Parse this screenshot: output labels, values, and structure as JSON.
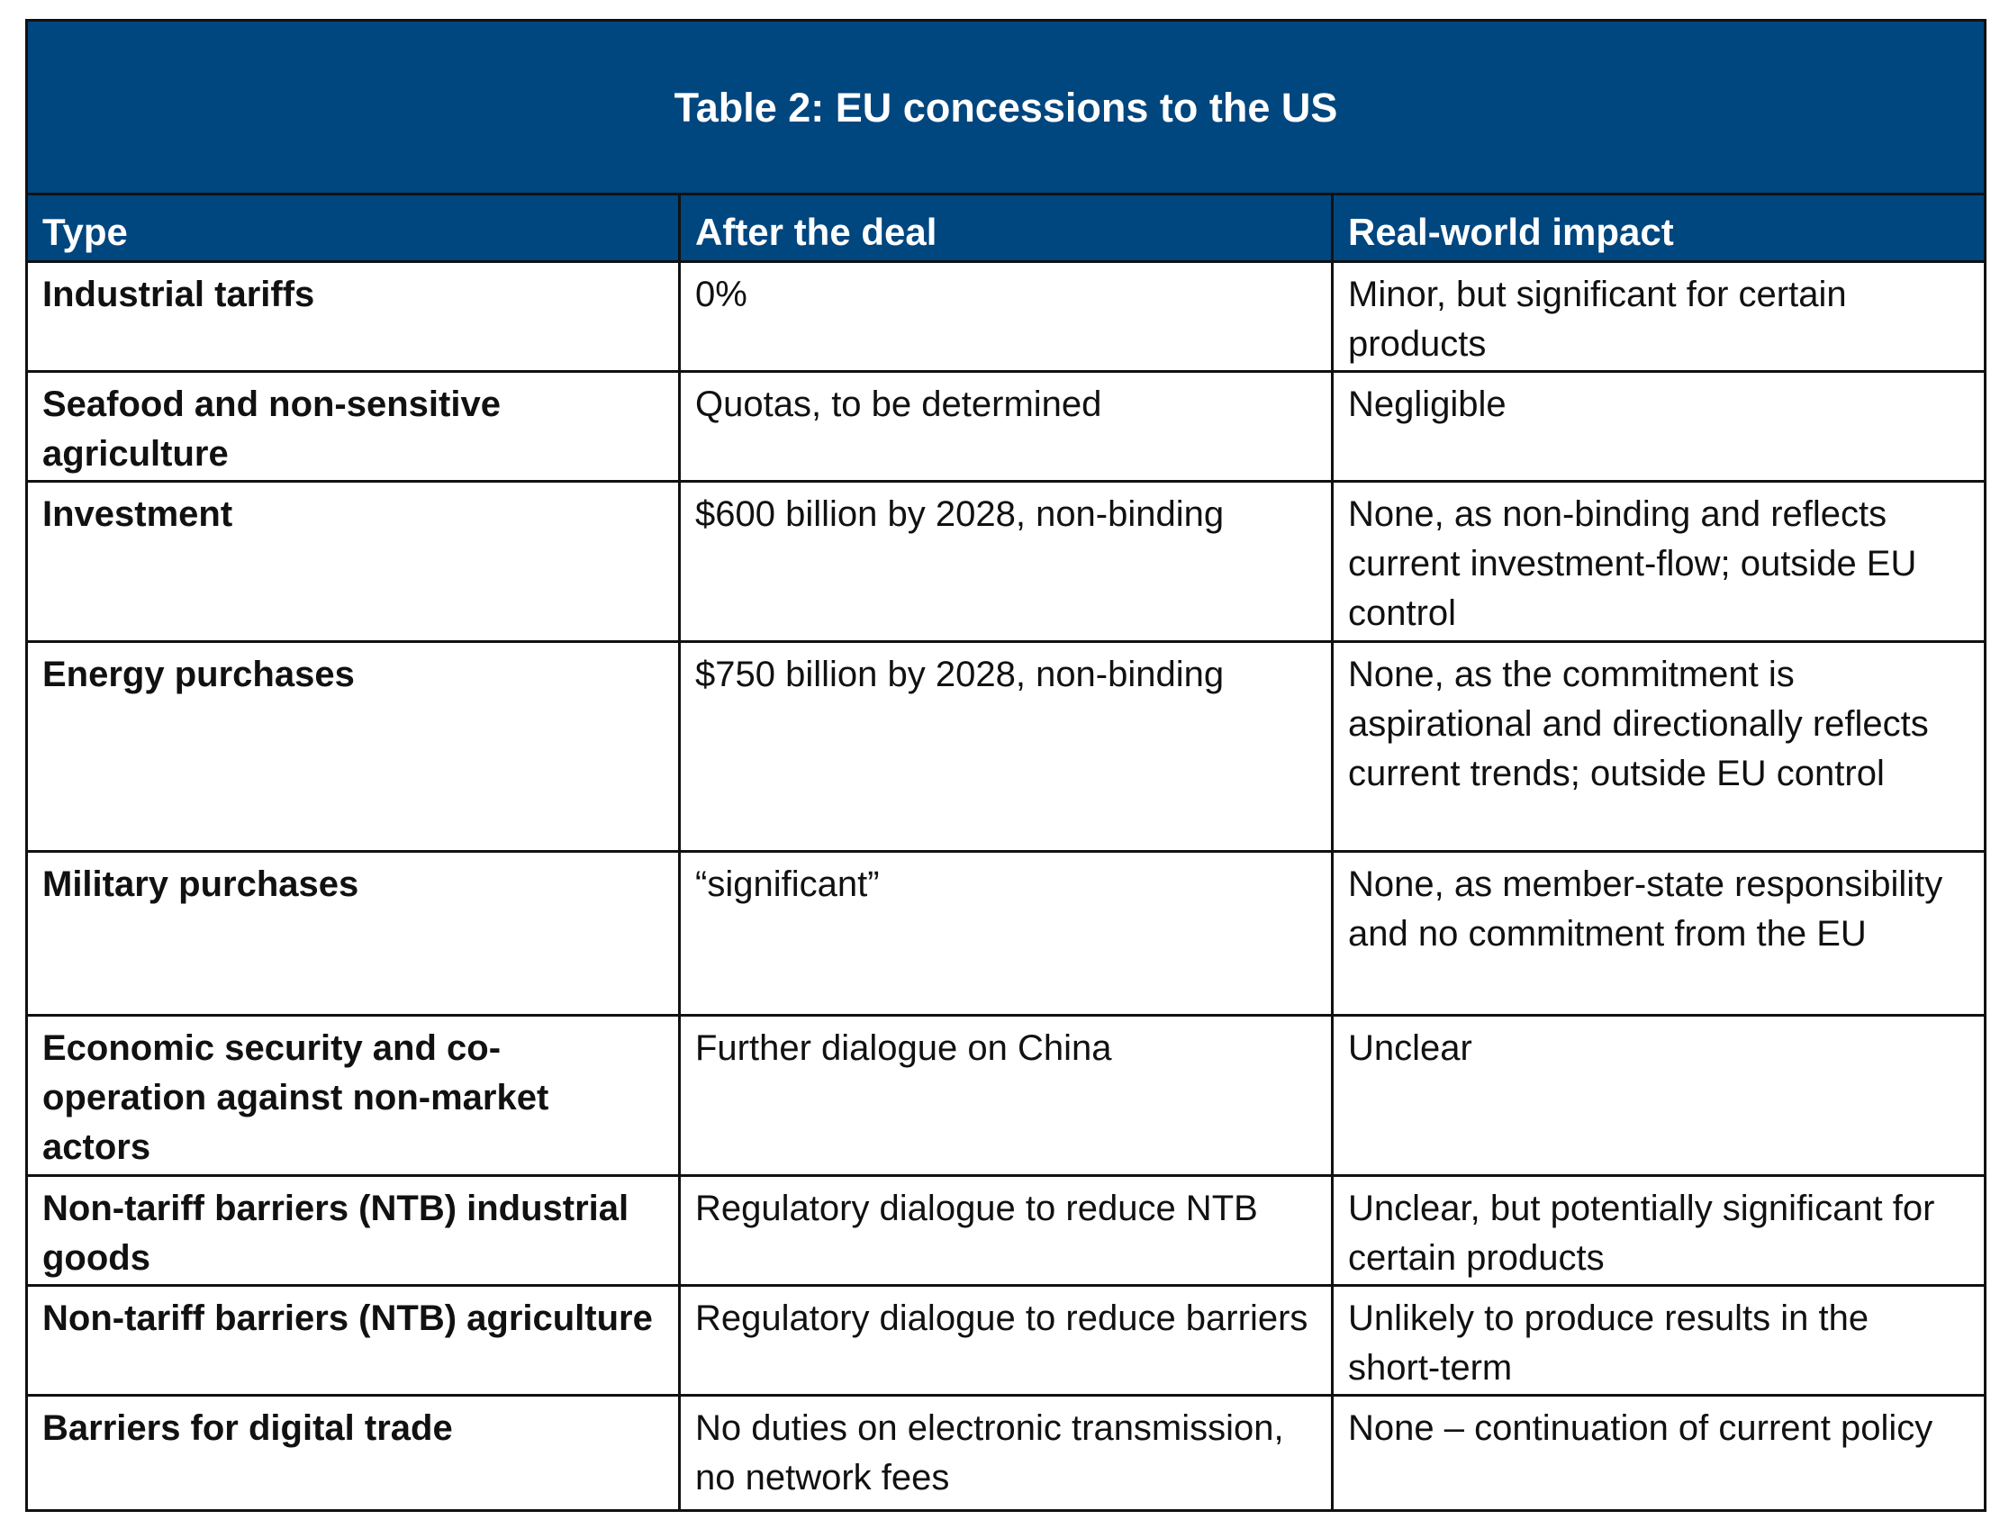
{
  "table": {
    "title": "Table 2: EU concessions to the US",
    "columns": [
      "Type",
      "After the deal",
      "Real-world impact"
    ],
    "rows": [
      [
        "Industrial tariffs",
        "0%",
        "Minor, but significant for certain products"
      ],
      [
        "Seafood and non-sensitive agriculture",
        "Quotas, to be determined",
        "Negligible"
      ],
      [
        "Investment",
        "$600 billion by 2028, non-binding",
        "None, as non-binding and reflects current investment-flow; outside EU control"
      ],
      [
        "Energy purchases",
        "$750 billion by 2028, non-binding",
        "None, as the commitment is aspirational and directionally reflects current trends; outside EU control"
      ],
      [
        "Military purchases",
        "“significant”",
        "None, as member-state responsibility and no commitment from the EU"
      ],
      [
        "Economic security and co-operation against non-market actors",
        "Further dialogue on China",
        "Unclear"
      ],
      [
        "Non-tariff barriers (NTB) industrial goods",
        "Regulatory dialogue to reduce NTB",
        "Unclear, but potentially significant for certain products"
      ],
      [
        "Non-tariff barriers (NTB) agriculture",
        "Regulatory dialogue to reduce barriers",
        "Unlikely to produce results in the short-term"
      ],
      [
        "Barriers for digital trade",
        "No duties on electronic transmission, no network fees",
        "None – continuation of current policy"
      ]
    ]
  }
}
